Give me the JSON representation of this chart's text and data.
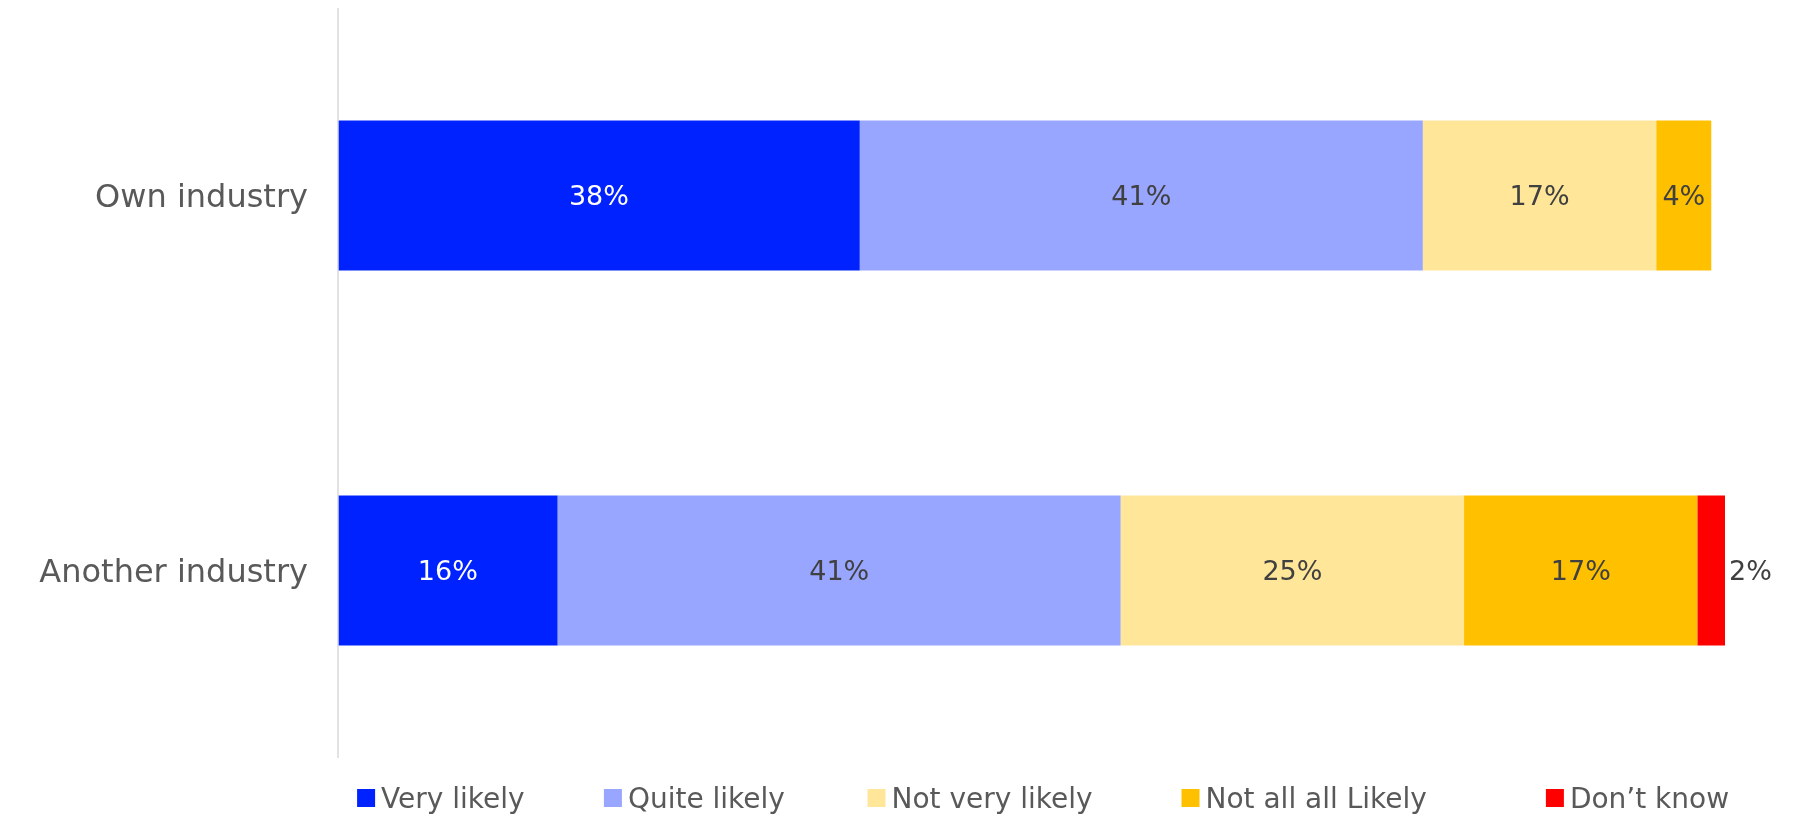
{
  "chart_data": {
    "type": "bar",
    "orientation": "horizontal",
    "stacked": true,
    "legend": "bottom",
    "categories": [
      "Own industry",
      "Another industry"
    ],
    "series": [
      {
        "name": "Very likely",
        "color": "#0022ff",
        "values": [
          38,
          16
        ],
        "value_labels": [
          "38%",
          "16%"
        ]
      },
      {
        "name": "Quite likely",
        "color": "#99a6ff",
        "values": [
          41,
          41
        ],
        "value_labels": [
          "41%",
          "41%"
        ]
      },
      {
        "name": "Not very likely",
        "color": "#ffe699",
        "values": [
          17,
          25
        ],
        "value_labels": [
          "17%",
          "25%"
        ]
      },
      {
        "name": "Not all all Likely",
        "color": "#ffc000",
        "values": [
          4,
          17
        ],
        "value_labels": [
          "4%",
          "17%"
        ]
      },
      {
        "name": "Don’t know",
        "color": "#ff0000",
        "values": [
          null,
          2
        ],
        "value_labels": [
          null,
          "2%"
        ]
      }
    ]
  }
}
